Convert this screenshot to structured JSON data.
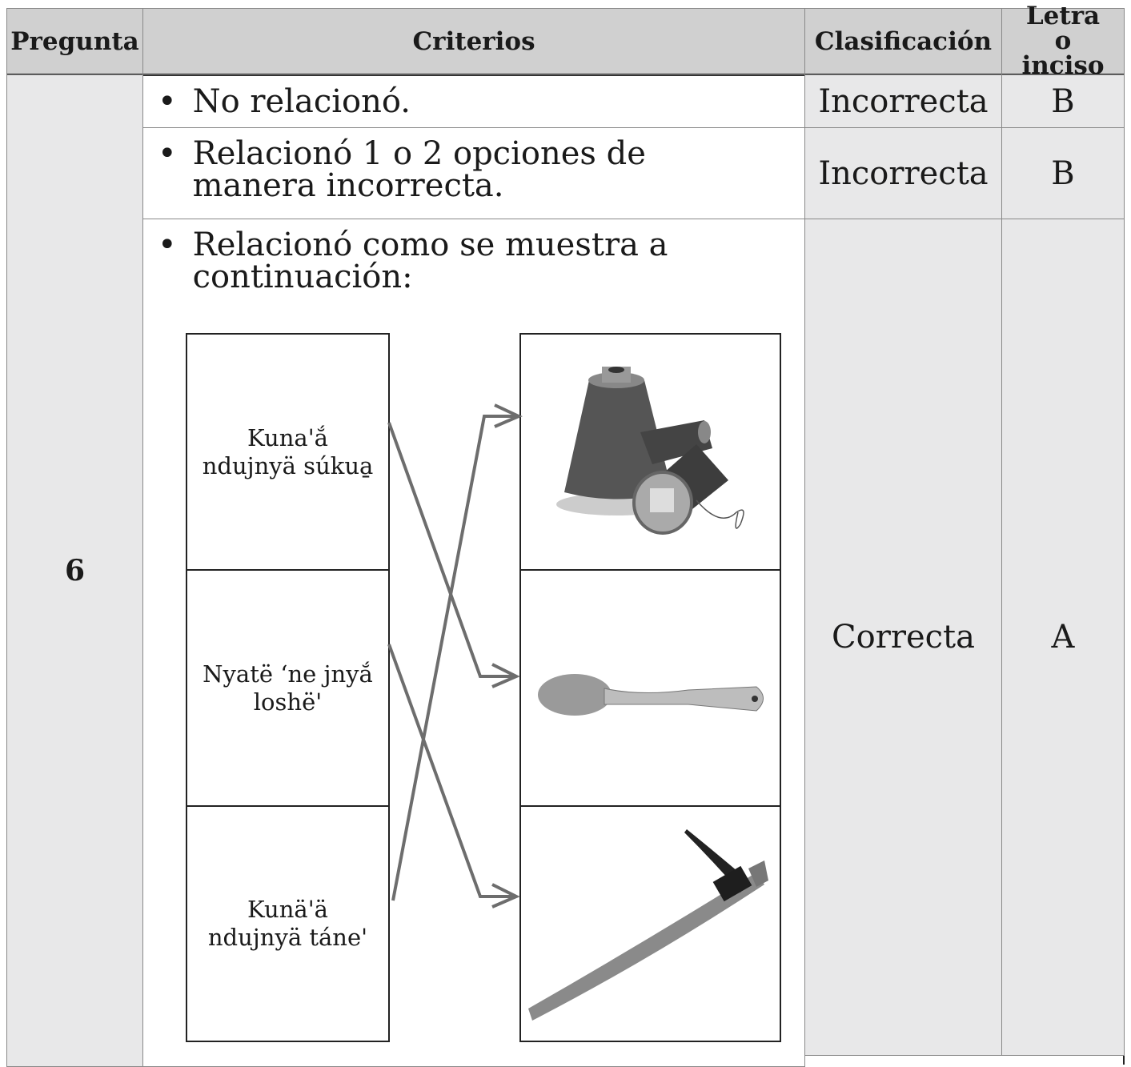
{
  "table": {
    "headers": [
      "Pregunta",
      "Criterios",
      "Clasificación",
      "Letra o inciso"
    ],
    "question": "6",
    "rows": [
      {
        "criterion": "No relacionó.",
        "classification": "Incorrecta",
        "letter": "B"
      },
      {
        "criterion": "Relacionó 1 o 2 opciones de manera incorrecta.",
        "classification": "Incorrecta",
        "letter": "B"
      },
      {
        "criterion": "Relacionó como se muestra a continuación:",
        "classification": "Correcta",
        "letter": "A"
      }
    ]
  },
  "matching": {
    "left": [
      "Kunaꞌắ ndujnyä súkua̱",
      "Nyatë ‘ne jnyắ loshëꞌ",
      "Kunäꞌä ndujnyä táneꞌ"
    ]
  }
}
